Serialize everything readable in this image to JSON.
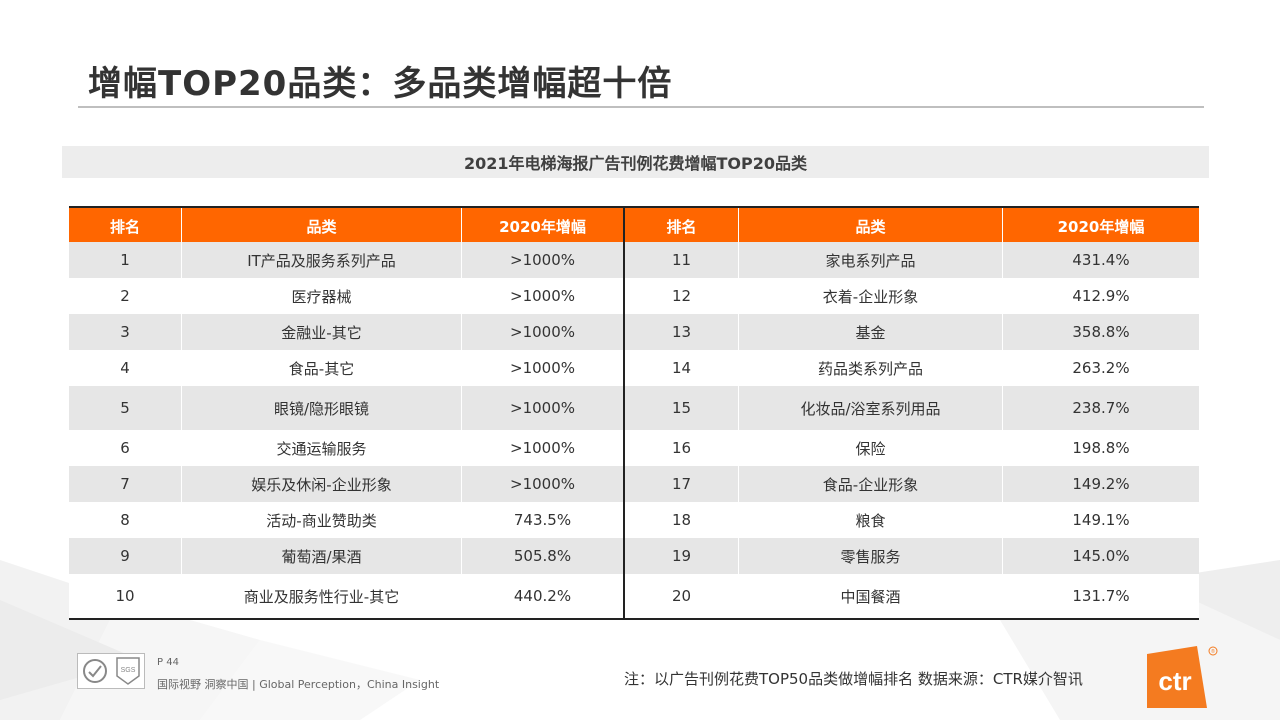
{
  "title": "增幅TOP20品类：多品类增幅超十倍",
  "table_caption": "2021年电梯海报广告刊例花费增幅TOP20品类",
  "headers": {
    "rank": "排名",
    "category": "品类",
    "growth": "2020年增幅"
  },
  "rows": [
    {
      "l_rank": "1",
      "l_cat": "IT产品及服务系列产品",
      "l_pct": ">1000%",
      "r_rank": "11",
      "r_cat": "家电系列产品",
      "r_pct": "431.4%"
    },
    {
      "l_rank": "2",
      "l_cat": "医疗器械",
      "l_pct": ">1000%",
      "r_rank": "12",
      "r_cat": "衣着-企业形象",
      "r_pct": "412.9%"
    },
    {
      "l_rank": "3",
      "l_cat": "金融业-其它",
      "l_pct": ">1000%",
      "r_rank": "13",
      "r_cat": "基金",
      "r_pct": "358.8%"
    },
    {
      "l_rank": "4",
      "l_cat": "食品-其它",
      "l_pct": ">1000%",
      "r_rank": "14",
      "r_cat": "药品类系列产品",
      "r_pct": "263.2%"
    },
    {
      "l_rank": "5",
      "l_cat": "眼镜/隐形眼镜",
      "l_pct": ">1000%",
      "r_rank": "15",
      "r_cat": "化妆品/浴室系列用品",
      "r_pct": "238.7%"
    },
    {
      "l_rank": "6",
      "l_cat": "交通运输服务",
      "l_pct": ">1000%",
      "r_rank": "16",
      "r_cat": "保险",
      "r_pct": "198.8%"
    },
    {
      "l_rank": "7",
      "l_cat": "娱乐及休闲-企业形象",
      "l_pct": ">1000%",
      "r_rank": "17",
      "r_cat": "食品-企业形象",
      "r_pct": "149.2%"
    },
    {
      "l_rank": "8",
      "l_cat": "活动-商业赞助类",
      "l_pct": "743.5%",
      "r_rank": "18",
      "r_cat": "粮食",
      "r_pct": "149.1%"
    },
    {
      "l_rank": "9",
      "l_cat": "葡萄酒/果酒",
      "l_pct": "505.8%",
      "r_rank": "19",
      "r_cat": "零售服务",
      "r_pct": "145.0%"
    },
    {
      "l_rank": "10",
      "l_cat": "商业及服务性行业-其它",
      "l_pct": "440.2%",
      "r_rank": "20",
      "r_cat": "中国餐酒",
      "r_pct": "131.7%"
    }
  ],
  "footer": {
    "page": "P 44",
    "slogan": "国际视野  洞察中国 | Global Perception，China Insight",
    "note": "注：以广告刊例花费TOP50品类做增幅排名  数据来源：CTR媒介智讯",
    "logo_text": "ctr",
    "cert_text": "SGS"
  },
  "colors": {
    "header_bg": "#ff6600",
    "row_shade": "#e6e6e6",
    "logo_orange": "#f47b20"
  }
}
